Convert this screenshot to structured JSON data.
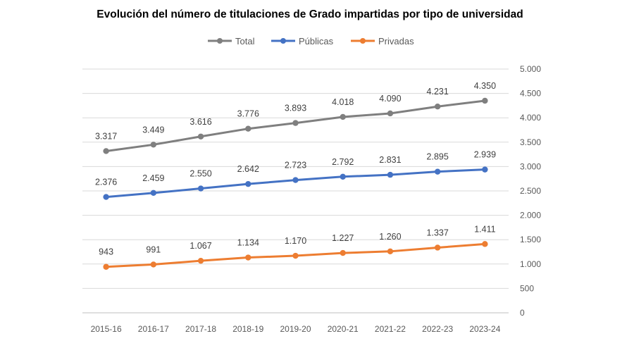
{
  "chart_data": {
    "type": "line",
    "title": "Evolución del número de titulaciones de Grado impartidas por tipo de universidad",
    "xlabel": "",
    "ylabel": "",
    "categories": [
      "2015-16",
      "2016-17",
      "2017-18",
      "2018-19",
      "2019-20",
      "2020-21",
      "2021-22",
      "2022-23",
      "2023-24"
    ],
    "ylim": [
      0,
      5000
    ],
    "yticks": [
      0,
      500,
      1000,
      1500,
      2000,
      2500,
      3000,
      3500,
      4000,
      4500,
      5000
    ],
    "ytick_labels": [
      "0",
      "500",
      "1.000",
      "1.500",
      "2.000",
      "2.500",
      "3.000",
      "3.500",
      "4.000",
      "4.500",
      "5.000"
    ],
    "y_axis_position": "right",
    "grid": true,
    "legend_position": "top",
    "series": [
      {
        "name": "Total",
        "color": "#7f7f7f",
        "values": [
          3317,
          3449,
          3616,
          3776,
          3893,
          4018,
          4090,
          4231,
          4350
        ],
        "labels": [
          "3.317",
          "3.449",
          "3.616",
          "3.776",
          "3.893",
          "4.018",
          "4.090",
          "4.231",
          "4.350"
        ]
      },
      {
        "name": "Públicas",
        "color": "#4472c4",
        "values": [
          2376,
          2459,
          2550,
          2642,
          2723,
          2792,
          2831,
          2895,
          2939
        ],
        "labels": [
          "2.376",
          "2.459",
          "2.550",
          "2.642",
          "2.723",
          "2.792",
          "2.831",
          "2.895",
          "2.939"
        ]
      },
      {
        "name": "Privadas",
        "color": "#ed7d31",
        "values": [
          943,
          991,
          1067,
          1134,
          1170,
          1227,
          1260,
          1337,
          1411
        ],
        "labels": [
          "943",
          "991",
          "1.067",
          "1.134",
          "1.170",
          "1.227",
          "1.260",
          "1.337",
          "1.411"
        ]
      }
    ]
  }
}
